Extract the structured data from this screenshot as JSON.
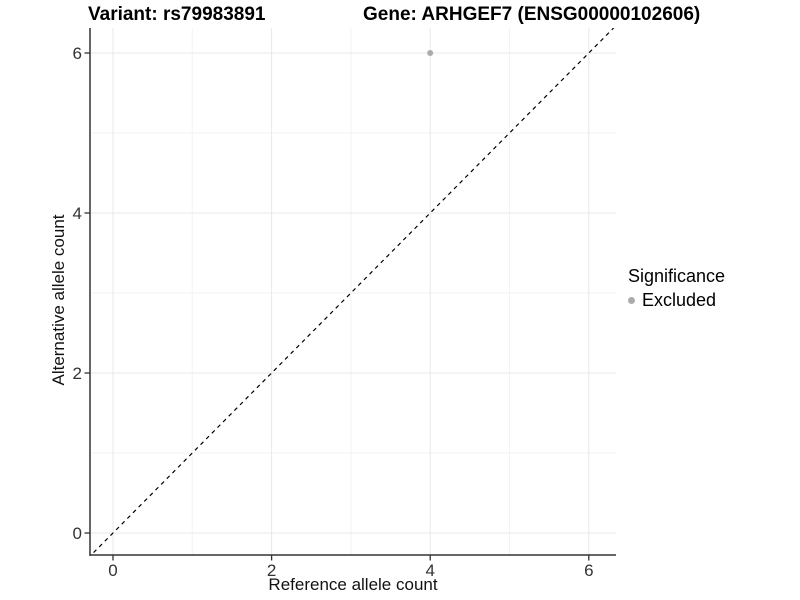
{
  "title": {
    "variant": "Variant: rs79983891",
    "gene": "Gene: ARHGEF7 (ENSG00000102606)"
  },
  "chart_data": {
    "type": "scatter",
    "title": "Variant: rs79983891 / Gene: ARHGEF7 (ENSG00000102606)",
    "xlabel": "Reference allele count",
    "ylabel": "Alternative allele count",
    "x_ticks": [
      0,
      2,
      4,
      6
    ],
    "y_ticks": [
      0,
      2,
      4,
      6
    ],
    "xlim": [
      -0.3,
      6.35
    ],
    "ylim": [
      -0.3,
      6.35
    ],
    "grid": "major+minor",
    "points": [
      {
        "x": 4,
        "y": 6,
        "series": "Excluded"
      }
    ],
    "reference_line": {
      "type": "identity y=x",
      "style": "dashed"
    },
    "legend": {
      "title": "Significance",
      "position": "right",
      "items": [
        {
          "label": "Excluded",
          "color": "#ababab"
        }
      ]
    }
  },
  "colors": {
    "background": "#ffffff",
    "grid_major": "#e8e8e8",
    "grid_minor": "#f3f3f3",
    "axis_line": "#333333",
    "tick_mark": "#333333",
    "tick_label": "#333333",
    "point": "#ababab",
    "reference_line": "#000000",
    "title_text": "#000000"
  }
}
